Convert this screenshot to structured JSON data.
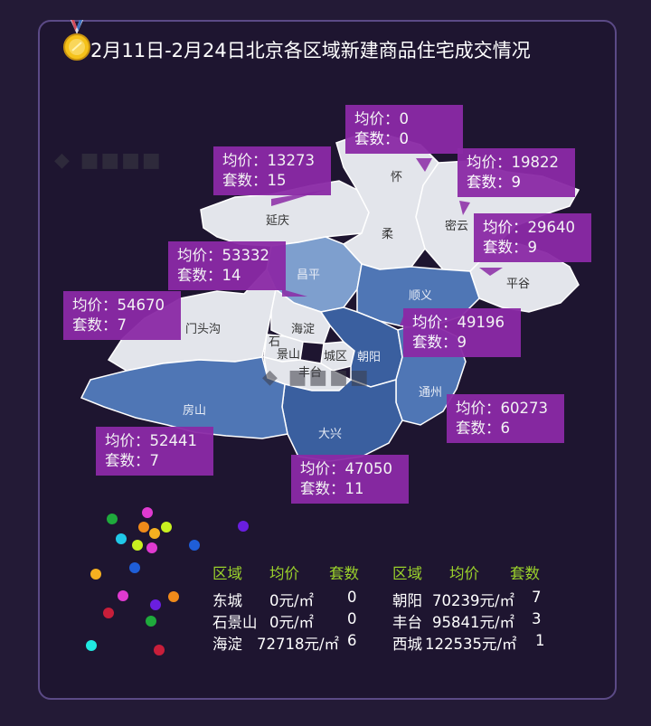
{
  "title": "2月11日-2月24日北京各区域新建商品住宅成交情况",
  "icons": {
    "medal": "medal-icon",
    "watermark": "brand-logo-watermark"
  },
  "colors": {
    "background": "#231a36",
    "callout": "#8b2aa6",
    "header_text": "#9bd22b",
    "region_light": "#e3e5eb",
    "region_mid": "#7e9fce",
    "region_blue": "#4f76b5",
    "region_dark": "#3a5f9f"
  },
  "districts": {
    "yanqing": "延庆",
    "huairou": "怀",
    "rou": "柔",
    "miyun": "密云",
    "pinggu": "平谷",
    "changping": "昌平",
    "shunyi": "顺义",
    "mentougou": "门头沟",
    "haidian": "海淀",
    "shijingshan_a": "石",
    "shijingshan_b": "景山",
    "chengqu": "城区",
    "chaoyang": "朝阳",
    "fengtai": "丰台",
    "fangshan": "房山",
    "daxing": "大兴",
    "tongzhou": "通州"
  },
  "callouts": [
    {
      "id": "huairou",
      "price_label": "均价：0",
      "count_label": "套数：0"
    },
    {
      "id": "yanqing",
      "price_label": "均价：13273",
      "count_label": "套数：15"
    },
    {
      "id": "miyun",
      "price_label": "均价：19822",
      "count_label": "套数：9"
    },
    {
      "id": "pinggu",
      "price_label": "均价：29640",
      "count_label": "套数：9"
    },
    {
      "id": "changping",
      "price_label": "均价：53332",
      "count_label": "套数：14"
    },
    {
      "id": "mentougou",
      "price_label": "均价：54670",
      "count_label": "套数：7"
    },
    {
      "id": "shunyi",
      "price_label": "均价：49196",
      "count_label": "套数：9"
    },
    {
      "id": "tongzhou",
      "price_label": "均价：60273",
      "count_label": "套数：6"
    },
    {
      "id": "fangshan",
      "price_label": "均价：52441",
      "count_label": "套数：7"
    },
    {
      "id": "daxing",
      "price_label": "均价：47050",
      "count_label": "套数：11"
    }
  ],
  "table": {
    "headers": [
      "区域",
      "均价",
      "套数",
      "区域",
      "均价",
      "套数"
    ],
    "rows": [
      [
        "东城",
        "0元/㎡",
        "0",
        "朝阳",
        "70239元/㎡",
        "7"
      ],
      [
        "石景山",
        "0元/㎡",
        "0",
        "丰台",
        "95841元/㎡",
        "3"
      ],
      [
        "海淀",
        "72718元/㎡",
        "6",
        "西城",
        "122535元/㎡",
        "1"
      ]
    ]
  }
}
